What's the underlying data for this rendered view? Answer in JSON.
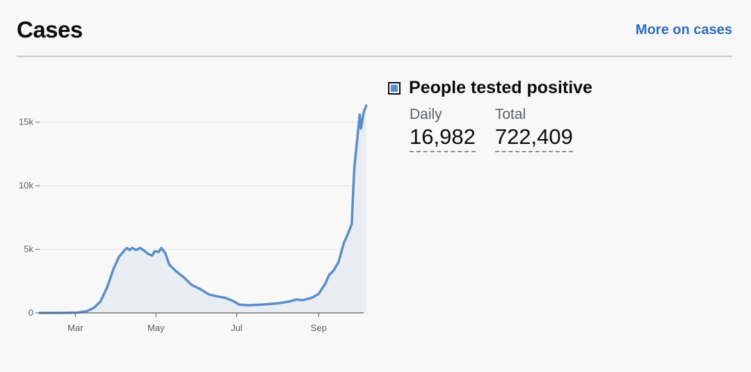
{
  "header": {
    "title": "Cases",
    "more_link": "More on cases"
  },
  "legend": {
    "series_name": "People tested positive",
    "swatch_color": "#5b8fc6"
  },
  "stats": {
    "daily_label": "Daily",
    "daily_value": "16,982",
    "total_label": "Total",
    "total_value": "722,409"
  },
  "chart_data": {
    "type": "area",
    "title": "",
    "xlabel": "",
    "ylabel": "",
    "ylim": [
      0,
      17500
    ],
    "xlim": [
      "2020-02-03",
      "2020-10-05"
    ],
    "y_ticks": [
      {
        "value": 0,
        "label": "0"
      },
      {
        "value": 5000,
        "label": "5k"
      },
      {
        "value": 10000,
        "label": "10k"
      },
      {
        "value": 15000,
        "label": "15k"
      }
    ],
    "x_ticks": [
      {
        "date": "2020-03-01",
        "label": "Mar"
      },
      {
        "date": "2020-05-01",
        "label": "May"
      },
      {
        "date": "2020-07-01",
        "label": "Jul"
      },
      {
        "date": "2020-09-01",
        "label": "Sep"
      }
    ],
    "grid": "horizontal",
    "series": [
      {
        "name": "People tested positive",
        "color": "#5b8fc6",
        "points": [
          [
            "2020-02-03",
            0
          ],
          [
            "2020-02-20",
            0
          ],
          [
            "2020-03-03",
            30
          ],
          [
            "2020-03-10",
            150
          ],
          [
            "2020-03-15",
            400
          ],
          [
            "2020-03-20",
            900
          ],
          [
            "2020-03-25",
            2000
          ],
          [
            "2020-03-30",
            3500
          ],
          [
            "2020-04-03",
            4400
          ],
          [
            "2020-04-07",
            4900
          ],
          [
            "2020-04-09",
            5100
          ],
          [
            "2020-04-11",
            4950
          ],
          [
            "2020-04-13",
            5100
          ],
          [
            "2020-04-16",
            4950
          ],
          [
            "2020-04-19",
            5100
          ],
          [
            "2020-04-22",
            4900
          ],
          [
            "2020-04-25",
            4650
          ],
          [
            "2020-04-28",
            4500
          ],
          [
            "2020-04-30",
            4850
          ],
          [
            "2020-05-03",
            4800
          ],
          [
            "2020-05-05",
            5100
          ],
          [
            "2020-05-08",
            4700
          ],
          [
            "2020-05-11",
            3800
          ],
          [
            "2020-05-16",
            3300
          ],
          [
            "2020-05-22",
            2800
          ],
          [
            "2020-05-28",
            2200
          ],
          [
            "2020-06-03",
            1900
          ],
          [
            "2020-06-10",
            1450
          ],
          [
            "2020-06-16",
            1300
          ],
          [
            "2020-06-22",
            1200
          ],
          [
            "2020-06-28",
            950
          ],
          [
            "2020-07-03",
            650
          ],
          [
            "2020-07-10",
            600
          ],
          [
            "2020-07-20",
            650
          ],
          [
            "2020-08-01",
            750
          ],
          [
            "2020-08-10",
            900
          ],
          [
            "2020-08-15",
            1050
          ],
          [
            "2020-08-20",
            1000
          ],
          [
            "2020-08-27",
            1200
          ],
          [
            "2020-09-01",
            1500
          ],
          [
            "2020-09-06",
            2300
          ],
          [
            "2020-09-09",
            3000
          ],
          [
            "2020-09-12",
            3300
          ],
          [
            "2020-09-16",
            4000
          ],
          [
            "2020-09-20",
            5500
          ],
          [
            "2020-09-23",
            6200
          ],
          [
            "2020-09-26",
            7000
          ],
          [
            "2020-09-27",
            9500
          ],
          [
            "2020-09-28",
            11500
          ],
          [
            "2020-09-30",
            13500
          ],
          [
            "2020-10-02",
            15600
          ],
          [
            "2020-10-03",
            14500
          ],
          [
            "2020-10-05",
            15800
          ],
          [
            "2020-10-07",
            16300
          ]
        ]
      }
    ]
  }
}
